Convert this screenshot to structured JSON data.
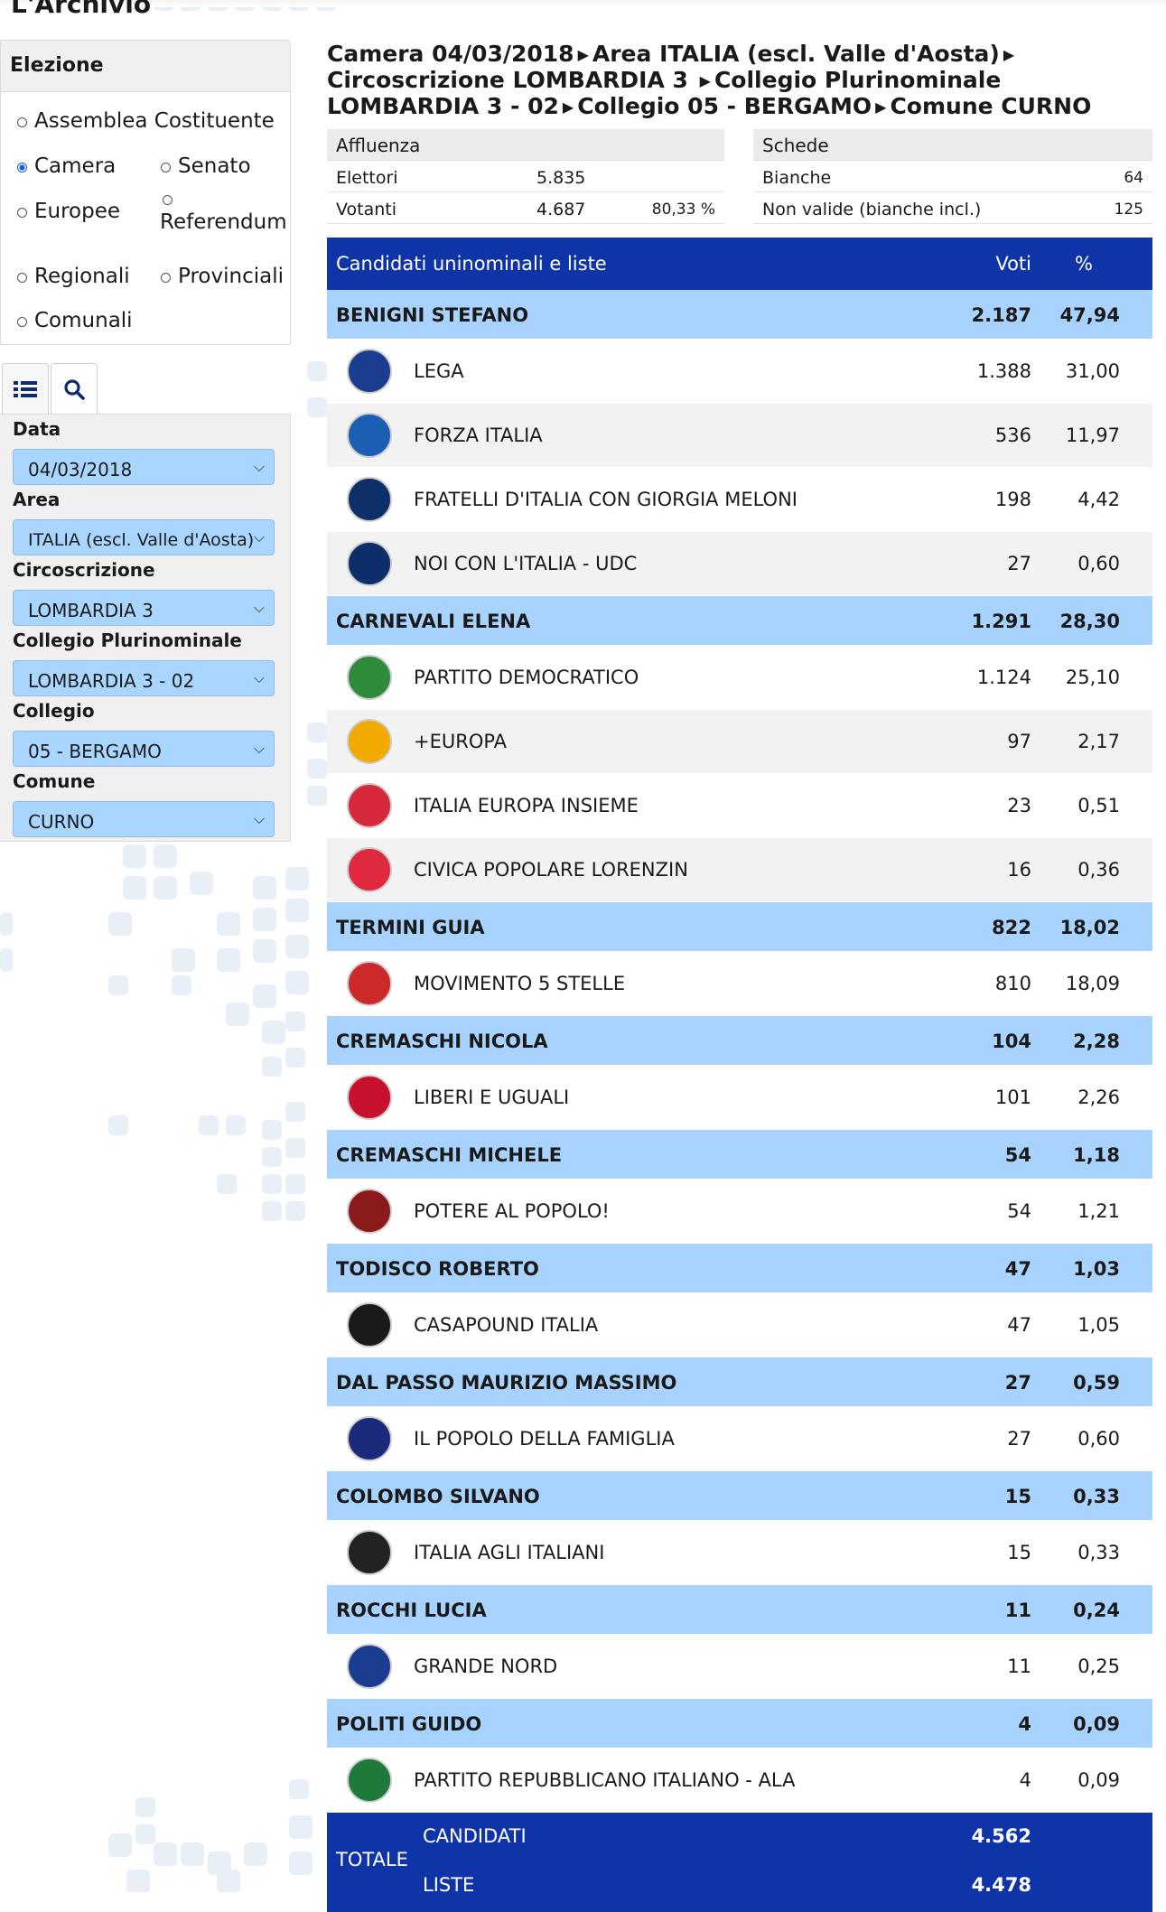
{
  "page_title": "L'Archivio",
  "elezione": {
    "title": "Elezione",
    "options": [
      {
        "label": "Assemblea Costituente",
        "selected": false
      },
      {
        "label": "Camera",
        "selected": true
      },
      {
        "label": "Senato",
        "selected": false
      },
      {
        "label": "Europee",
        "selected": false
      },
      {
        "label": "Referendum",
        "selected": false
      },
      {
        "label": "Regionali",
        "selected": false
      },
      {
        "label": "Provinciali",
        "selected": false
      },
      {
        "label": "Comunali",
        "selected": false
      }
    ]
  },
  "tabs": [
    {
      "icon": "list-icon"
    },
    {
      "icon": "search-icon"
    }
  ],
  "filters": {
    "data_label": "Data",
    "data_value": "04/03/2018",
    "area_label": "Area",
    "area_value": "ITALIA (escl. Valle d'Aosta)",
    "circ_label": "Circoscrizione",
    "circ_value": "LOMBARDIA 3",
    "plur_label": "Collegio Plurinominale",
    "plur_value": "LOMBARDIA 3 - 02",
    "coll_label": "Collegio",
    "coll_value": "05 - BERGAMO",
    "comune_label": "Comune",
    "comune_value": "CURNO"
  },
  "breadcrumb": {
    "parts": [
      "Camera 04/03/2018",
      "Area ITALIA (escl. Valle d'Aosta)",
      "Circoscrizione LOMBARDIA 3",
      "Collegio Plurinominale LOMBARDIA 3 - 02",
      "Collegio 05 - BERGAMO",
      "Comune CURNO"
    ]
  },
  "affluenza": {
    "title": "Affluenza",
    "elettori_label": "Elettori",
    "elettori_value": "5.835",
    "votanti_label": "Votanti",
    "votanti_value": "4.687",
    "votanti_pct": "80,33 %"
  },
  "schede": {
    "title": "Schede",
    "bianche_label": "Bianche",
    "bianche_value": "64",
    "nonvalide_label": "Non valide (bianche incl.)",
    "nonvalide_value": "125"
  },
  "table": {
    "header_name": "Candidati uninominali e liste",
    "header_voti": "Voti",
    "header_pct": "%",
    "rows": [
      {
        "type": "cand",
        "name": "BENIGNI STEFANO",
        "voti": "2.187",
        "pct": "47,94"
      },
      {
        "type": "party",
        "name": "LEGA",
        "voti": "1.388",
        "pct": "31,00",
        "logo": "lega-logo",
        "color": "#1b3d8f"
      },
      {
        "type": "party",
        "name": "FORZA ITALIA",
        "voti": "536",
        "pct": "11,97",
        "logo": "forza-italia-logo",
        "color": "#1a5fb4"
      },
      {
        "type": "party",
        "name": "FRATELLI D'ITALIA CON GIORGIA MELONI",
        "voti": "198",
        "pct": "4,42",
        "logo": "fratelli-italia-logo",
        "color": "#0f2f6b"
      },
      {
        "type": "party",
        "name": "NOI CON L'ITALIA - UDC",
        "voti": "27",
        "pct": "0,60",
        "logo": "noi-con-italia-logo",
        "color": "#0d2d6b"
      },
      {
        "type": "cand",
        "name": "CARNEVALI ELENA",
        "voti": "1.291",
        "pct": "28,30"
      },
      {
        "type": "party",
        "name": "PARTITO DEMOCRATICO",
        "voti": "1.124",
        "pct": "25,10",
        "logo": "pd-logo",
        "color": "#2e8b3a"
      },
      {
        "type": "party",
        "name": "+EUROPA",
        "voti": "97",
        "pct": "2,17",
        "logo": "piu-europa-logo",
        "color": "#f2a900"
      },
      {
        "type": "party",
        "name": "ITALIA EUROPA INSIEME",
        "voti": "23",
        "pct": "0,51",
        "logo": "insieme-logo",
        "color": "#d8283c"
      },
      {
        "type": "party",
        "name": "CIVICA POPOLARE LORENZIN",
        "voti": "16",
        "pct": "0,36",
        "logo": "civica-popolare-logo",
        "color": "#e0283f"
      },
      {
        "type": "cand",
        "name": "TERMINI GUIA",
        "voti": "822",
        "pct": "18,02"
      },
      {
        "type": "party",
        "name": "MOVIMENTO 5 STELLE",
        "voti": "810",
        "pct": "18,09",
        "logo": "m5s-logo",
        "color": "#cc2a2a"
      },
      {
        "type": "cand",
        "name": "CREMASCHI NICOLA",
        "voti": "104",
        "pct": "2,28"
      },
      {
        "type": "party",
        "name": "LIBERI E UGUALI",
        "voti": "101",
        "pct": "2,26",
        "logo": "leu-logo",
        "color": "#c8102e"
      },
      {
        "type": "cand",
        "name": "CREMASCHI MICHELE",
        "voti": "54",
        "pct": "1,18"
      },
      {
        "type": "party",
        "name": "POTERE AL POPOLO!",
        "voti": "54",
        "pct": "1,21",
        "logo": "potere-al-popolo-logo",
        "color": "#8b1a1a"
      },
      {
        "type": "cand",
        "name": "TODISCO ROBERTO",
        "voti": "47",
        "pct": "1,03"
      },
      {
        "type": "party",
        "name": "CASAPOUND ITALIA",
        "voti": "47",
        "pct": "1,05",
        "logo": "casapound-logo",
        "color": "#1a1a1a"
      },
      {
        "type": "cand",
        "name": "DAL PASSO MAURIZIO MASSIMO",
        "voti": "27",
        "pct": "0,59"
      },
      {
        "type": "party",
        "name": "IL POPOLO DELLA FAMIGLIA",
        "voti": "27",
        "pct": "0,60",
        "logo": "popolo-famiglia-logo",
        "color": "#1b2a7a"
      },
      {
        "type": "cand",
        "name": "COLOMBO SILVANO",
        "voti": "15",
        "pct": "0,33"
      },
      {
        "type": "party",
        "name": "ITALIA AGLI ITALIANI",
        "voti": "15",
        "pct": "0,33",
        "logo": "italia-agli-italiani-logo",
        "color": "#222222"
      },
      {
        "type": "cand",
        "name": "ROCCHI LUCIA",
        "voti": "11",
        "pct": "0,24"
      },
      {
        "type": "party",
        "name": "GRANDE NORD",
        "voti": "11",
        "pct": "0,25",
        "logo": "grande-nord-logo",
        "color": "#1b3d8f"
      },
      {
        "type": "cand",
        "name": "POLITI GUIDO",
        "voti": "4",
        "pct": "0,09"
      },
      {
        "type": "party",
        "name": "PARTITO REPUBBLICANO ITALIANO - ALA",
        "voti": "4",
        "pct": "0,09",
        "logo": "pri-ala-logo",
        "color": "#1e7a3a"
      }
    ],
    "total": {
      "label": "TOTALE",
      "candidati_label": "CANDIDATI",
      "candidati_value": "4.562",
      "liste_label": "LISTE",
      "liste_value": "4.478"
    }
  },
  "colors": {
    "header_blue": "#0f34a8",
    "candidate_row": "#a9d3ff",
    "select_bg": "#a9d6ff"
  }
}
